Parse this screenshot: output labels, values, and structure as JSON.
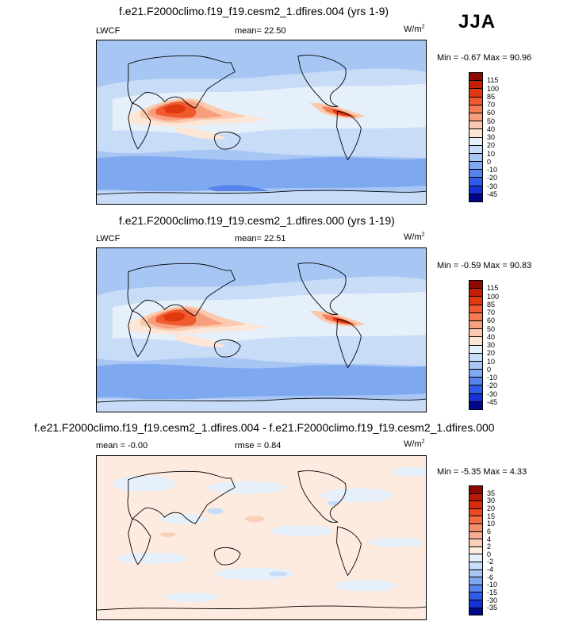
{
  "season": "JJA",
  "units_base": "W/m",
  "units_exp": "2",
  "panels": [
    {
      "title": "f.e21.F2000climo.f19_f19.cesm2_1.dfires.004 (yrs 1-9)",
      "left_label": "LWCF",
      "mid_label": "mean=  22.50",
      "minmax": "Min =  -0.67 Max =  90.96",
      "colorbar_levels": [
        "115",
        "100",
        "85",
        "70",
        "60",
        "50",
        "40",
        "30",
        "20",
        "10",
        "0",
        "-10",
        "-20",
        "-30",
        "-45"
      ],
      "colorbar_colors": [
        "#8c0a00",
        "#c31f07",
        "#e0380f",
        "#ef5a2f",
        "#f47b53",
        "#f79e7e",
        "#fbc9ad",
        "#fde6d6",
        "#e6f0fb",
        "#c8dcf8",
        "#a8c6f4",
        "#7ea8f0",
        "#5683ec",
        "#2f5be8",
        "#1532d6",
        "#02068a"
      ]
    },
    {
      "title": "f.e21.F2000climo.f19_f19.cesm2_1.dfires.000 (yrs 1-19)",
      "left_label": "LWCF",
      "mid_label": "mean=  22.51",
      "minmax": "Min =  -0.59 Max =  90.83",
      "colorbar_levels": [
        "115",
        "100",
        "85",
        "70",
        "60",
        "50",
        "40",
        "30",
        "20",
        "10",
        "0",
        "-10",
        "-20",
        "-30",
        "-45"
      ],
      "colorbar_colors": [
        "#8c0a00",
        "#c31f07",
        "#e0380f",
        "#ef5a2f",
        "#f47b53",
        "#f79e7e",
        "#fbc9ad",
        "#fde6d6",
        "#e6f0fb",
        "#c8dcf8",
        "#a8c6f4",
        "#7ea8f0",
        "#5683ec",
        "#2f5be8",
        "#1532d6",
        "#02068a"
      ]
    },
    {
      "title": "f.e21.F2000climo.f19_f19.cesm2_1.dfires.004 - f.e21.F2000climo.f19_f19.cesm2_1.dfires.000",
      "left_label": "mean = -0.00",
      "mid_label": "rmse =  0.84",
      "minmax": "Min =  -5.35 Max =   4.33",
      "colorbar_levels": [
        "35",
        "30",
        "20",
        "15",
        "10",
        "6",
        "4",
        "2",
        "0",
        "-2",
        "-4",
        "-6",
        "-10",
        "-15",
        "-30",
        "-35"
      ],
      "colorbar_colors": [
        "#8c0a00",
        "#b81805",
        "#d82c0b",
        "#ea4a21",
        "#f26b43",
        "#f58e6a",
        "#f8af91",
        "#fbd0b9",
        "#fdebdf",
        "#e6f0fb",
        "#c8dcf8",
        "#a8c6f4",
        "#7ea8f0",
        "#5683ec",
        "#2f5be8",
        "#1532d6",
        "#02068a"
      ]
    }
  ]
}
